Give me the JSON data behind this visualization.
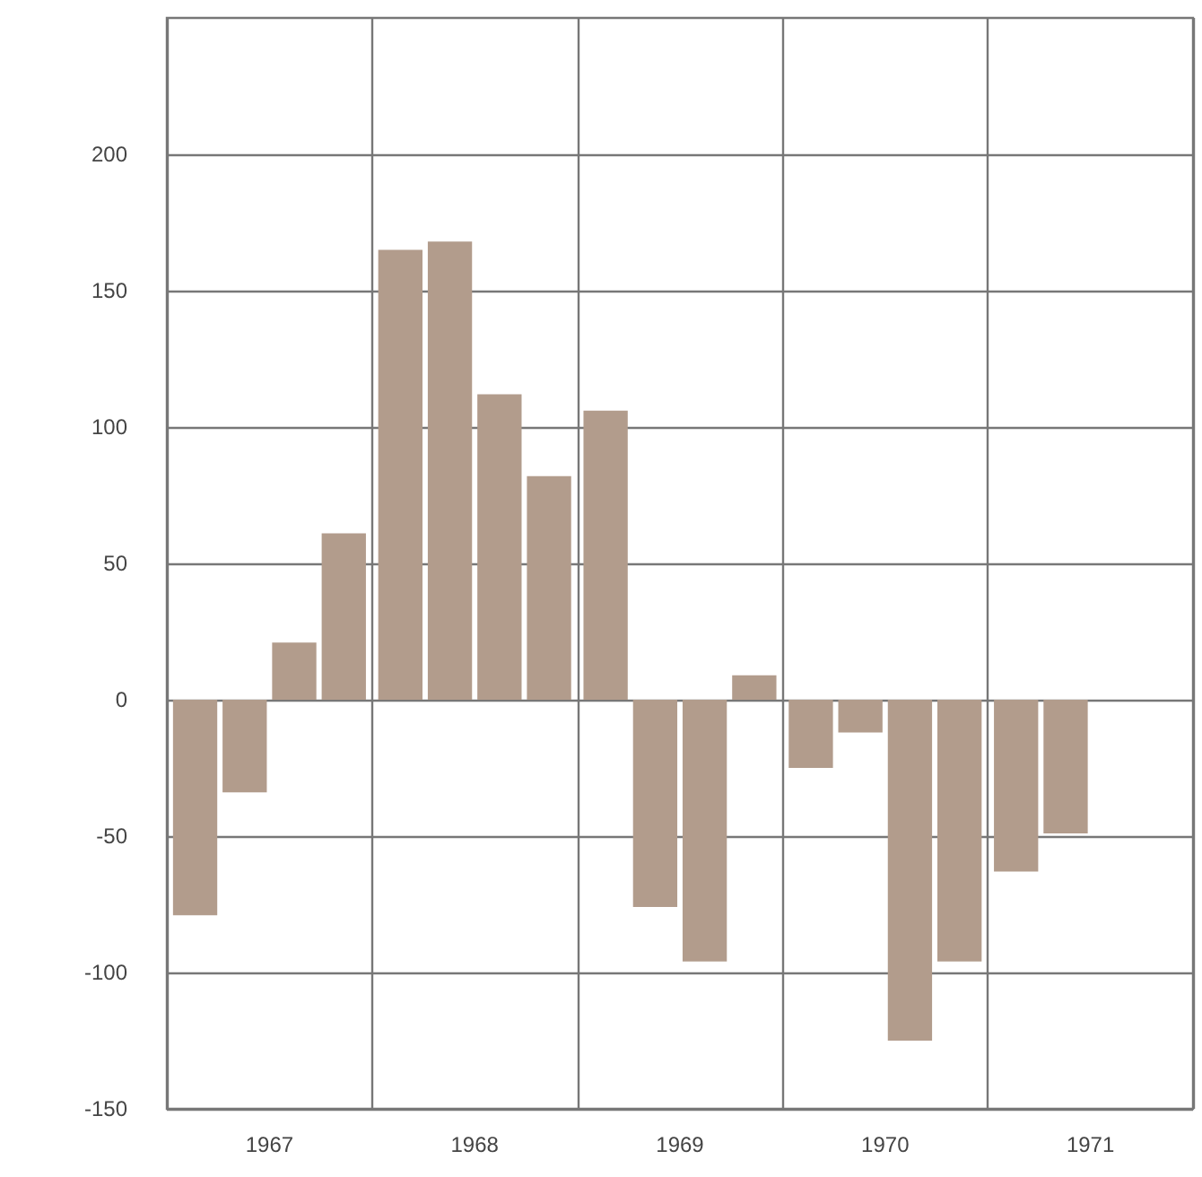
{
  "chart_data": {
    "type": "bar",
    "categories": [
      "1967",
      "1968",
      "1969",
      "1970",
      "1971"
    ],
    "series": [
      {
        "color": "#b29c8c",
        "values": [
          -79,
          165,
          106,
          -25,
          -63
        ]
      },
      {
        "color": "#b29c8c",
        "values": [
          -34,
          168,
          -76,
          -12,
          -49
        ]
      },
      {
        "color": "#b29c8c",
        "values": [
          21,
          112,
          -96,
          -125,
          null
        ]
      },
      {
        "color": "#b29c8c",
        "values": [
          61,
          82,
          9,
          -96,
          null
        ]
      }
    ],
    "ylim": [
      -150,
      250
    ],
    "yticks": [
      -150,
      -100,
      -50,
      0,
      50,
      100,
      150,
      200
    ],
    "grid": true
  }
}
